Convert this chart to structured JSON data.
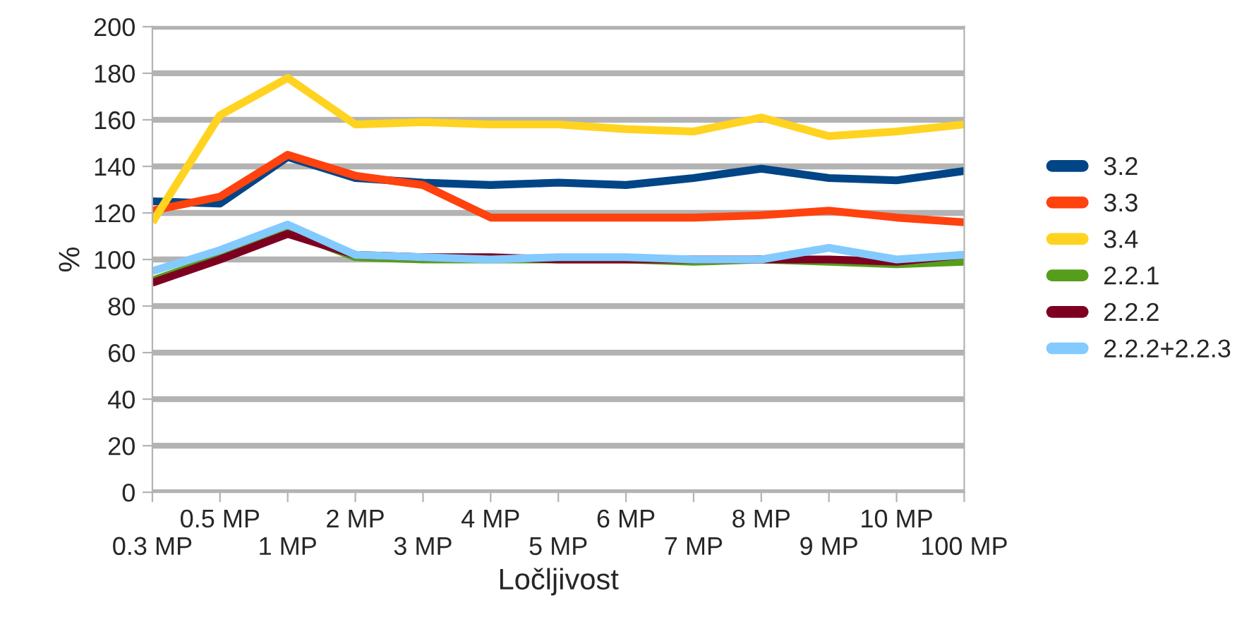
{
  "chart_data": {
    "type": "line",
    "xlabel": "Ločljivost",
    "ylabel": "%",
    "categories": [
      "0.3 MP",
      "0.5 MP",
      "1 MP",
      "2 MP",
      "3 MP",
      "4 MP",
      "5 MP",
      "6 MP",
      "7 MP",
      "8 MP",
      "9 MP",
      "10 MP",
      "100 MP"
    ],
    "ylim": [
      0,
      200
    ],
    "yticks": [
      0,
      20,
      40,
      60,
      80,
      100,
      120,
      140,
      160,
      180,
      200
    ],
    "grid": "y",
    "legend": "right",
    "marker": "none",
    "line_style": "solid",
    "series": [
      {
        "name": "3.2",
        "color": "#004586",
        "values": [
          125,
          124,
          144,
          135,
          133,
          132,
          133,
          132,
          135,
          139,
          135,
          134,
          138
        ]
      },
      {
        "name": "3.3",
        "color": "#ff420e",
        "values": [
          121,
          127,
          145,
          136,
          132,
          118,
          118,
          118,
          118,
          119,
          121,
          118,
          116
        ]
      },
      {
        "name": "3.4",
        "color": "#ffd320",
        "values": [
          116,
          162,
          178,
          158,
          159,
          158,
          158,
          156,
          155,
          161,
          153,
          155,
          158
        ]
      },
      {
        "name": "2.2.1",
        "color": "#579d1c",
        "values": [
          91,
          101,
          112,
          101,
          100,
          100,
          100,
          100,
          99,
          100,
          99,
          98,
          99
        ]
      },
      {
        "name": "2.2.2",
        "color": "#7e0021",
        "values": [
          90,
          100,
          111,
          102,
          101,
          101,
          100,
          100,
          100,
          100,
          100,
          99,
          102
        ]
      },
      {
        "name": "2.2.2+2.2.3",
        "color": "#83caff",
        "values": [
          95,
          104,
          115,
          102,
          101,
          100,
          101,
          101,
          100,
          100,
          105,
          100,
          102
        ]
      }
    ]
  }
}
